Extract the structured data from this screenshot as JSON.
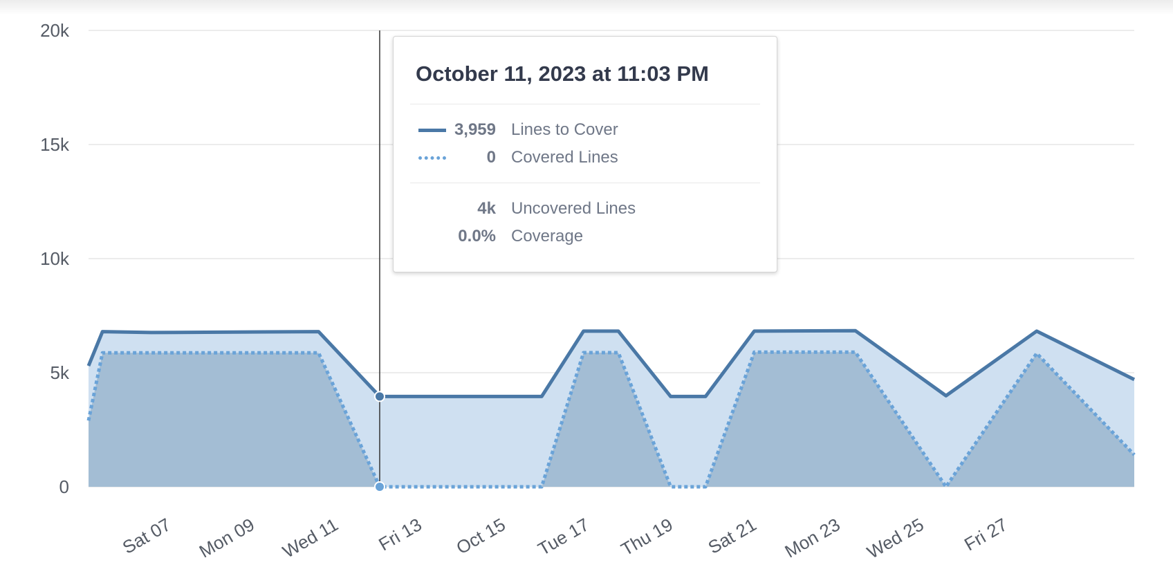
{
  "chart_data": {
    "type": "area",
    "title": "",
    "xlabel": "",
    "ylabel": "",
    "ylim": [
      0,
      20000
    ],
    "yticks": [
      0,
      5000,
      10000,
      15000,
      20000
    ],
    "ytick_labels": [
      "0",
      "5k",
      "10k",
      "15k",
      "20k"
    ],
    "xlim": [
      "2023-10-05T00:00",
      "2023-10-30T00:00"
    ],
    "xticks": [
      "2023-10-07",
      "2023-10-09",
      "2023-10-11",
      "2023-10-13",
      "2023-10-15",
      "2023-10-17",
      "2023-10-19",
      "2023-10-21",
      "2023-10-23",
      "2023-10-25",
      "2023-10-27"
    ],
    "xtick_labels": [
      "Sat 07",
      "Mon 09",
      "Wed 11",
      "Fri 13",
      "Oct 15",
      "Tue 17",
      "Thu 19",
      "Sat 21",
      "Mon 23",
      "Wed 25",
      "Fri 27"
    ],
    "grid": true,
    "series": [
      {
        "name": "Lines to Cover",
        "style": "solid",
        "color": "#4a78a6",
        "fill": "#cfe0f1",
        "points": [
          [
            "2023-10-05T00:00",
            5300
          ],
          [
            "2023-10-05T08:00",
            6800
          ],
          [
            "2023-10-06T12:00",
            6760
          ],
          [
            "2023-10-10T12:00",
            6800
          ],
          [
            "2023-10-11T23:03",
            3959
          ],
          [
            "2023-10-15T20:00",
            3959
          ],
          [
            "2023-10-16T20:00",
            6820
          ],
          [
            "2023-10-17T16:00",
            6820
          ],
          [
            "2023-10-18T22:00",
            3959
          ],
          [
            "2023-10-19T18:00",
            3959
          ],
          [
            "2023-10-20T22:00",
            6820
          ],
          [
            "2023-10-23T08:00",
            6840
          ],
          [
            "2023-10-25T12:00",
            3990
          ],
          [
            "2023-10-27T16:00",
            6820
          ],
          [
            "2023-10-30T00:00",
            4700
          ]
        ]
      },
      {
        "name": "Covered Lines",
        "style": "dotted",
        "color": "#6aa3d8",
        "fill": "#a3bdd4",
        "points": [
          [
            "2023-10-05T00:00",
            2900
          ],
          [
            "2023-10-05T08:00",
            5870
          ],
          [
            "2023-10-10T12:00",
            5870
          ],
          [
            "2023-10-11T23:03",
            0
          ],
          [
            "2023-10-15T20:00",
            0
          ],
          [
            "2023-10-16T20:00",
            5880
          ],
          [
            "2023-10-17T16:00",
            5880
          ],
          [
            "2023-10-18T22:00",
            0
          ],
          [
            "2023-10-19T18:00",
            0
          ],
          [
            "2023-10-20T22:00",
            5900
          ],
          [
            "2023-10-23T08:00",
            5900
          ],
          [
            "2023-10-25T12:00",
            0
          ],
          [
            "2023-10-27T16:00",
            5850
          ],
          [
            "2023-10-30T00:00",
            1400
          ]
        ]
      }
    ],
    "crosshair_x": "2023-10-11T23:03",
    "tooltip": {
      "title": "October 11, 2023 at 11:03 PM",
      "rows": [
        {
          "value": "3,959",
          "label": "Lines to Cover",
          "swatch": "solid"
        },
        {
          "value": "0",
          "label": "Covered Lines",
          "swatch": "dotted"
        }
      ],
      "extra_rows": [
        {
          "value": "4k",
          "label": "Uncovered Lines"
        },
        {
          "value": "0.0%",
          "label": "Coverage"
        }
      ]
    },
    "colors": {
      "grid": "#e6e6e6",
      "tick_text": "#555b65",
      "crosshair": "#333333",
      "marker_solid": "#4a78a6",
      "marker_dotted": "#6aa3d8"
    }
  }
}
